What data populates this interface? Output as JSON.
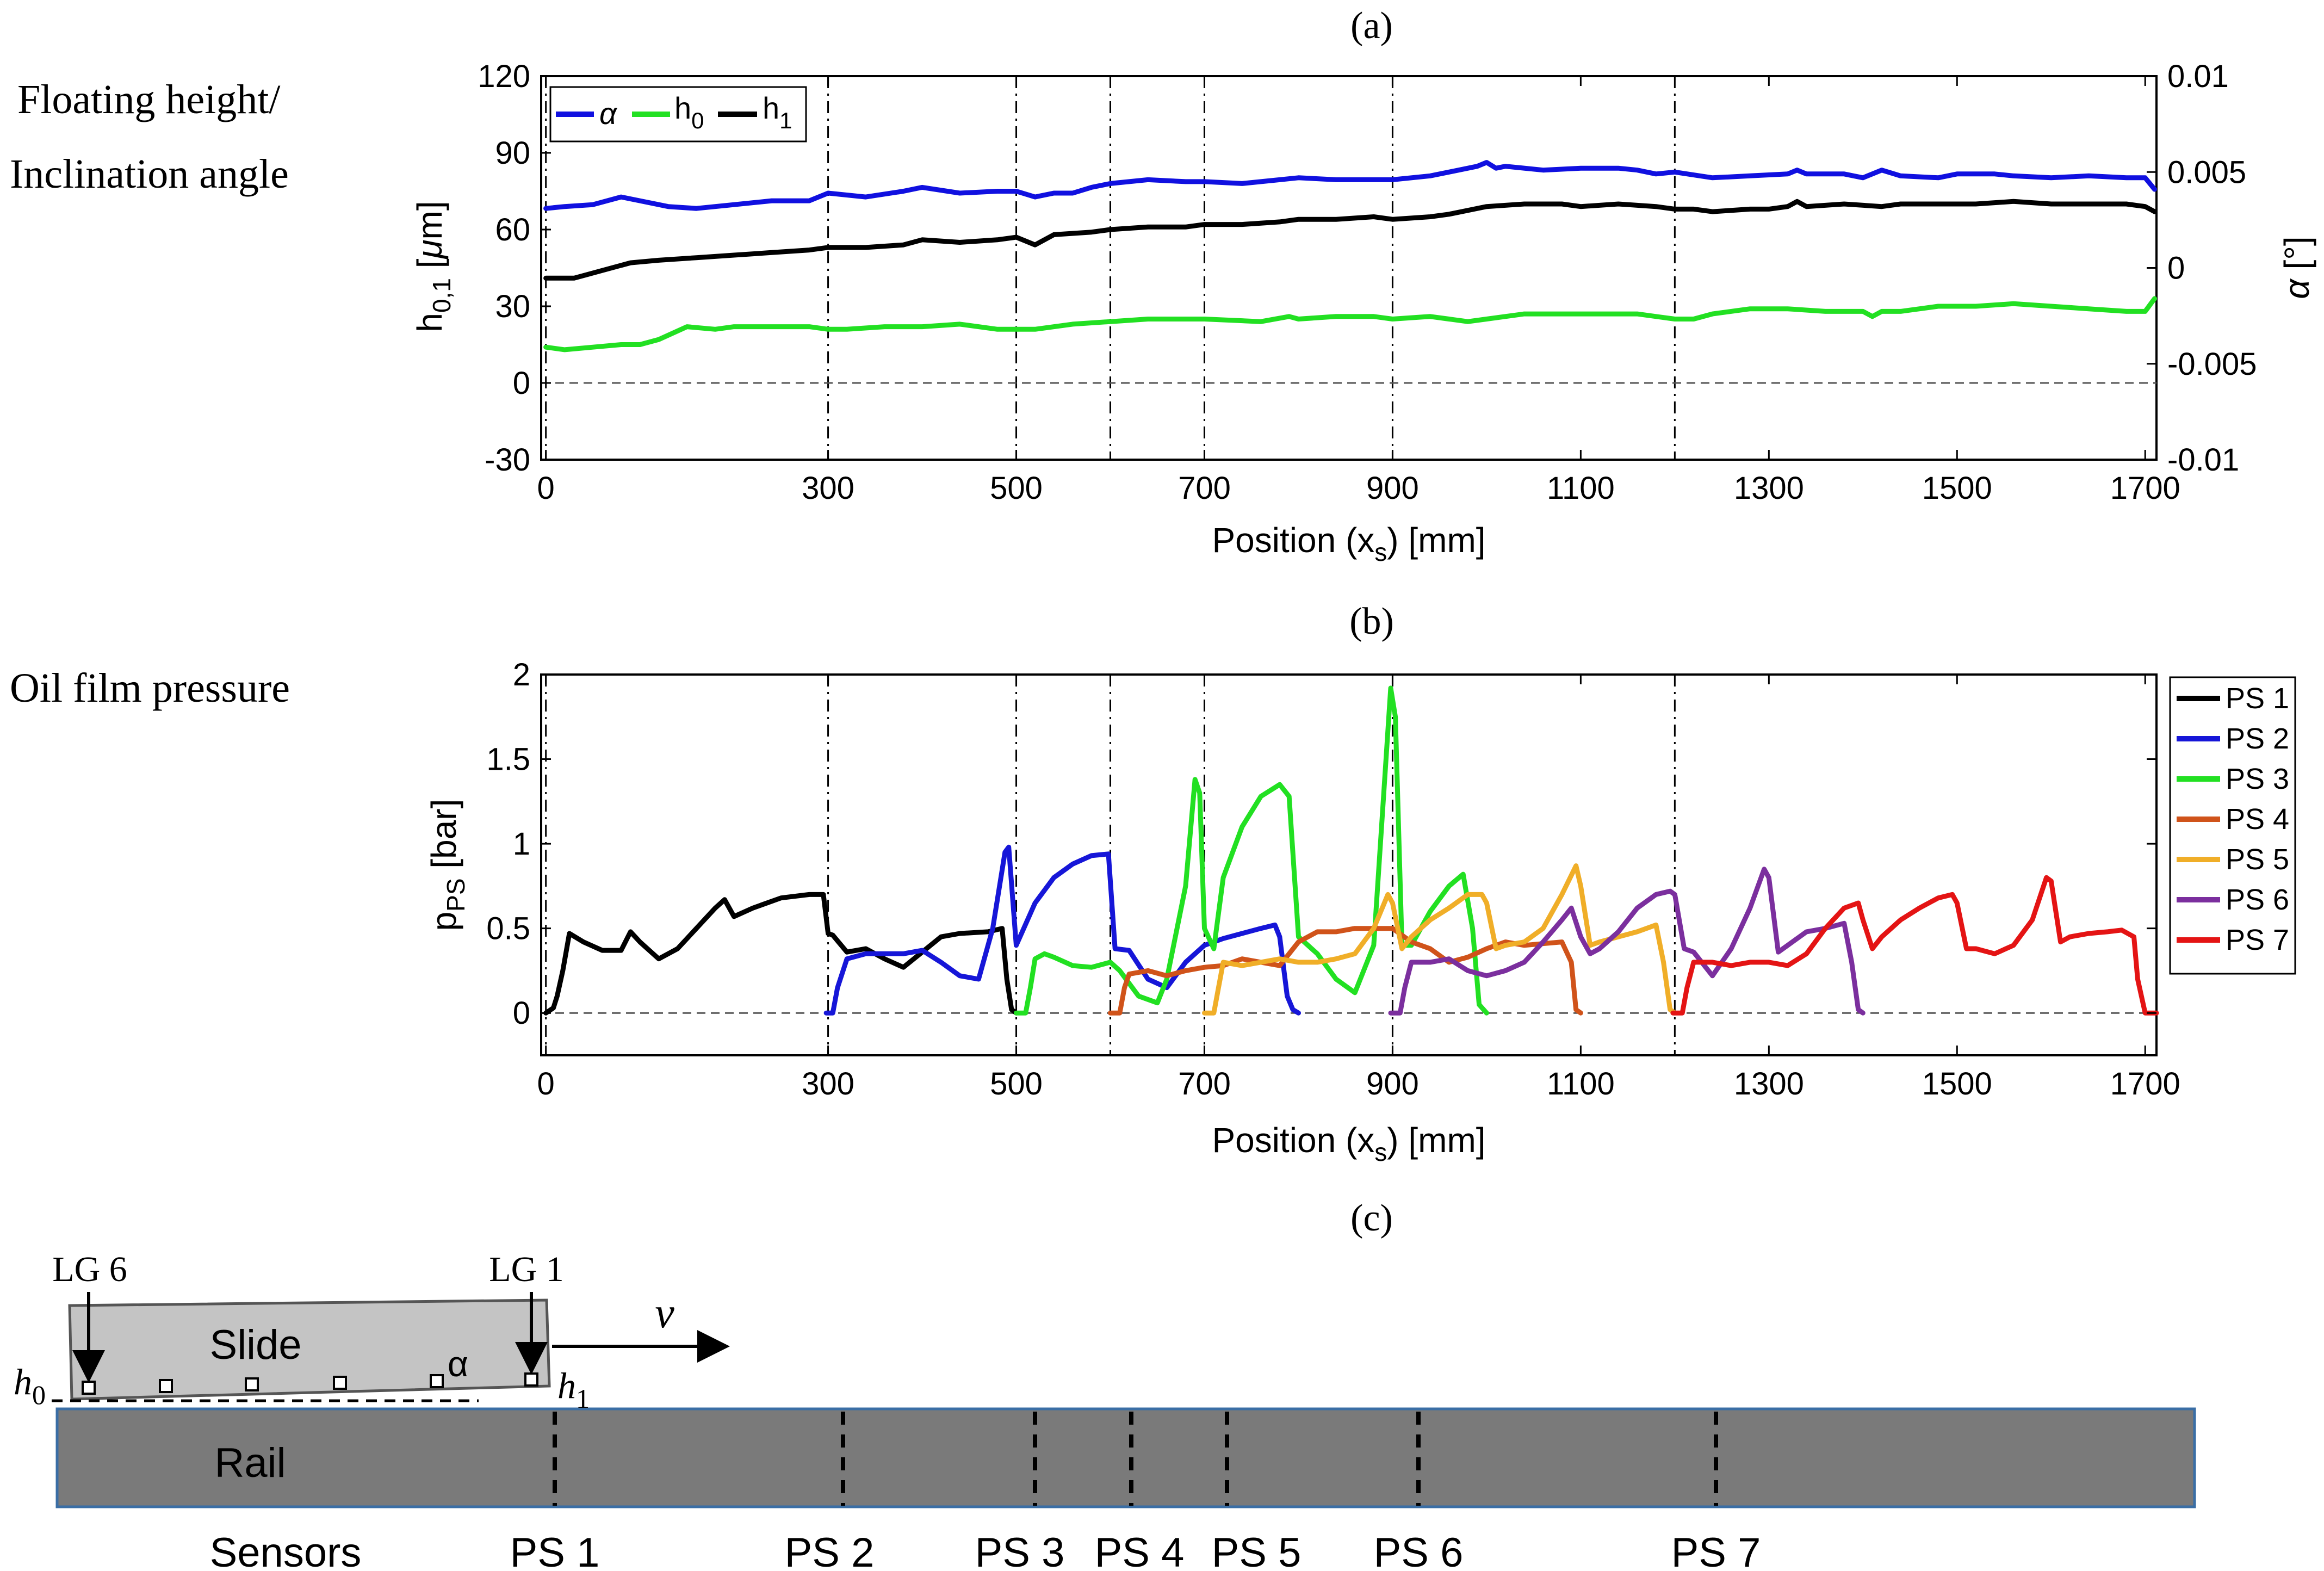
{
  "side_labels": {
    "a_line1": "Floating height/",
    "a_line2": "Inclination angle",
    "b_line1": "Oil film pressure"
  },
  "panel_labels": {
    "a": "(a)",
    "b": "(b)",
    "c": "(c)"
  },
  "chart_data": [
    {
      "type": "line",
      "panel": "a",
      "xlabel": "Position (x_s) [mm]",
      "ylabel": "h_0,1 [µm]",
      "ylabel_right": "α [°]",
      "xlim": [
        -5,
        1712
      ],
      "ylim": [
        -30,
        120
      ],
      "ylim_right": [
        -0.01,
        0.01
      ],
      "x_ticks": [
        0,
        300,
        500,
        700,
        900,
        1100,
        1300,
        1500,
        1700
      ],
      "y_ticks": [
        -30,
        0,
        30,
        60,
        90,
        120
      ],
      "y_ticks_right": [
        -0.01,
        -0.005,
        0,
        0.005,
        0.01
      ],
      "vlines": [
        0,
        300,
        500,
        600,
        700,
        900,
        1200
      ],
      "hline": 0,
      "legend": {
        "placement": "top-left",
        "entries": [
          "α",
          "h_0",
          "h_1"
        ]
      },
      "series": [
        {
          "name": "α",
          "axis": "right",
          "color": "#1010e0",
          "x": [
            0,
            20,
            50,
            80,
            100,
            130,
            160,
            200,
            240,
            280,
            300,
            340,
            380,
            400,
            440,
            480,
            500,
            520,
            540,
            560,
            580,
            600,
            640,
            680,
            700,
            740,
            780,
            800,
            840,
            880,
            900,
            940,
            960,
            990,
            1000,
            1010,
            1020,
            1060,
            1100,
            1140,
            1160,
            1180,
            1200,
            1240,
            1280,
            1320,
            1330,
            1340,
            1380,
            1400,
            1420,
            1440,
            1480,
            1500,
            1540,
            1560,
            1600,
            1640,
            1680,
            1700,
            1710
          ],
          "y": [
            0.0031,
            0.0032,
            0.0033,
            0.0037,
            0.0035,
            0.0032,
            0.0031,
            0.0033,
            0.0035,
            0.0035,
            0.0039,
            0.0037,
            0.004,
            0.0042,
            0.0039,
            0.004,
            0.004,
            0.0037,
            0.0039,
            0.0039,
            0.0042,
            0.0044,
            0.0046,
            0.0045,
            0.0045,
            0.0044,
            0.0046,
            0.0047,
            0.0046,
            0.0046,
            0.0046,
            0.0048,
            0.005,
            0.0053,
            0.0055,
            0.0052,
            0.0053,
            0.0051,
            0.0052,
            0.0052,
            0.0051,
            0.0049,
            0.005,
            0.0047,
            0.0048,
            0.0049,
            0.0051,
            0.0049,
            0.0049,
            0.0047,
            0.0051,
            0.0048,
            0.0047,
            0.0049,
            0.0049,
            0.0048,
            0.0047,
            0.0048,
            0.0047,
            0.0047,
            0.0041
          ]
        },
        {
          "name": "h_0",
          "axis": "left",
          "color": "#22e022",
          "x": [
            0,
            20,
            50,
            80,
            100,
            120,
            150,
            180,
            200,
            240,
            280,
            300,
            320,
            360,
            400,
            440,
            480,
            500,
            520,
            560,
            600,
            640,
            700,
            760,
            790,
            800,
            840,
            880,
            900,
            940,
            960,
            980,
            1000,
            1040,
            1100,
            1160,
            1200,
            1220,
            1240,
            1280,
            1320,
            1360,
            1400,
            1410,
            1420,
            1440,
            1480,
            1520,
            1560,
            1600,
            1640,
            1680,
            1700,
            1710
          ],
          "y": [
            14,
            13,
            14,
            15,
            15,
            17,
            22,
            21,
            22,
            22,
            22,
            21,
            21,
            22,
            22,
            23,
            21,
            21,
            21,
            23,
            24,
            25,
            25,
            24,
            26,
            25,
            26,
            26,
            25,
            26,
            25,
            24,
            25,
            27,
            27,
            27,
            25,
            25,
            27,
            29,
            29,
            28,
            28,
            26,
            28,
            28,
            30,
            30,
            31,
            30,
            29,
            28,
            28,
            33
          ]
        },
        {
          "name": "h_1",
          "axis": "left",
          "color": "#000000",
          "x": [
            0,
            30,
            60,
            90,
            120,
            160,
            200,
            240,
            280,
            300,
            340,
            380,
            400,
            440,
            480,
            500,
            520,
            540,
            580,
            600,
            640,
            680,
            700,
            740,
            780,
            800,
            840,
            880,
            900,
            940,
            960,
            1000,
            1040,
            1080,
            1100,
            1140,
            1180,
            1200,
            1220,
            1240,
            1280,
            1300,
            1320,
            1330,
            1340,
            1380,
            1420,
            1440,
            1480,
            1520,
            1560,
            1600,
            1640,
            1680,
            1700,
            1710
          ],
          "y": [
            41,
            41,
            44,
            47,
            48,
            49,
            50,
            51,
            52,
            53,
            53,
            54,
            56,
            55,
            56,
            57,
            54,
            58,
            59,
            60,
            61,
            61,
            62,
            62,
            63,
            64,
            64,
            65,
            64,
            65,
            66,
            69,
            70,
            70,
            69,
            70,
            69,
            68,
            68,
            67,
            68,
            68,
            69,
            71,
            69,
            70,
            69,
            70,
            70,
            70,
            71,
            70,
            70,
            70,
            69,
            67
          ]
        }
      ]
    },
    {
      "type": "line",
      "panel": "b",
      "xlabel": "Position (x_s) [mm]",
      "ylabel": "p_PS [bar]",
      "xlim": [
        -5,
        1712
      ],
      "ylim": [
        -0.25,
        2.0
      ],
      "x_ticks": [
        0,
        300,
        500,
        700,
        900,
        1100,
        1300,
        1500,
        1700
      ],
      "y_ticks": [
        0,
        0.5,
        1,
        1.5,
        2
      ],
      "vlines": [
        0,
        300,
        500,
        600,
        700,
        900,
        1200
      ],
      "hline": 0,
      "legend": {
        "placement": "right"
      },
      "series": [
        {
          "name": "PS 1",
          "color": "#000000",
          "x": [
            0,
            8,
            12,
            18,
            25,
            40,
            60,
            80,
            90,
            100,
            120,
            140,
            160,
            180,
            190,
            200,
            220,
            250,
            280,
            295,
            300,
            305,
            320,
            340,
            360,
            380,
            400,
            420,
            440,
            470,
            485,
            490,
            495,
            500
          ],
          "y": [
            0,
            0.03,
            0.1,
            0.25,
            0.47,
            0.42,
            0.37,
            0.37,
            0.48,
            0.42,
            0.32,
            0.38,
            0.5,
            0.62,
            0.67,
            0.57,
            0.62,
            0.68,
            0.7,
            0.7,
            0.47,
            0.46,
            0.36,
            0.38,
            0.32,
            0.27,
            0.36,
            0.45,
            0.47,
            0.48,
            0.5,
            0.2,
            0.02,
            0
          ]
        },
        {
          "name": "PS 2",
          "color": "#1616d8",
          "x": [
            298,
            305,
            310,
            320,
            340,
            360,
            380,
            400,
            420,
            440,
            460,
            475,
            488,
            492,
            500,
            520,
            540,
            560,
            580,
            598,
            605,
            620,
            640,
            660,
            680,
            700,
            720,
            740,
            760,
            775,
            780,
            788,
            794,
            800
          ],
          "y": [
            0,
            0,
            0.15,
            0.32,
            0.35,
            0.35,
            0.35,
            0.37,
            0.3,
            0.22,
            0.2,
            0.5,
            0.95,
            0.98,
            0.4,
            0.65,
            0.8,
            0.88,
            0.93,
            0.94,
            0.38,
            0.37,
            0.2,
            0.15,
            0.3,
            0.4,
            0.44,
            0.47,
            0.5,
            0.52,
            0.45,
            0.1,
            0.02,
            0
          ]
        },
        {
          "name": "PS 3",
          "color": "#22e022",
          "x": [
            500,
            510,
            515,
            520,
            530,
            540,
            560,
            580,
            600,
            610,
            630,
            650,
            660,
            680,
            690,
            695,
            700,
            710,
            720,
            740,
            760,
            780,
            790,
            800,
            820,
            840,
            860,
            880,
            898,
            903,
            910,
            920,
            940,
            960,
            975,
            985,
            992,
            1000
          ],
          "y": [
            0,
            0,
            0.15,
            0.32,
            0.35,
            0.33,
            0.28,
            0.27,
            0.3,
            0.25,
            0.1,
            0.06,
            0.2,
            0.75,
            1.38,
            1.3,
            0.5,
            0.38,
            0.8,
            1.1,
            1.28,
            1.35,
            1.28,
            0.45,
            0.35,
            0.2,
            0.12,
            0.4,
            1.92,
            1.75,
            0.4,
            0.4,
            0.6,
            0.75,
            0.82,
            0.5,
            0.05,
            0
          ]
        },
        {
          "name": "PS 4",
          "color": "#d0531a",
          "x": [
            600,
            610,
            615,
            620,
            640,
            660,
            680,
            700,
            720,
            740,
            760,
            780,
            800,
            820,
            840,
            860,
            880,
            900,
            920,
            940,
            960,
            980,
            1000,
            1020,
            1040,
            1060,
            1080,
            1090,
            1095,
            1100
          ],
          "y": [
            0,
            0,
            0.15,
            0.23,
            0.25,
            0.22,
            0.25,
            0.27,
            0.28,
            0.32,
            0.3,
            0.28,
            0.42,
            0.48,
            0.48,
            0.5,
            0.5,
            0.5,
            0.42,
            0.38,
            0.3,
            0.33,
            0.38,
            0.42,
            0.4,
            0.41,
            0.42,
            0.3,
            0.02,
            0
          ]
        },
        {
          "name": "PS 5",
          "color": "#f0ae28",
          "x": [
            700,
            710,
            715,
            720,
            740,
            760,
            780,
            800,
            820,
            840,
            860,
            880,
            895,
            900,
            910,
            920,
            940,
            960,
            980,
            995,
            1000,
            1010,
            1020,
            1040,
            1060,
            1080,
            1095,
            1100,
            1110,
            1120,
            1140,
            1160,
            1180,
            1188,
            1195,
            1200
          ],
          "y": [
            0,
            0,
            0.15,
            0.3,
            0.28,
            0.3,
            0.32,
            0.3,
            0.3,
            0.32,
            0.35,
            0.5,
            0.7,
            0.65,
            0.38,
            0.45,
            0.55,
            0.62,
            0.7,
            0.7,
            0.65,
            0.38,
            0.4,
            0.42,
            0.5,
            0.7,
            0.87,
            0.75,
            0.4,
            0.42,
            0.45,
            0.48,
            0.52,
            0.3,
            0.02,
            0
          ]
        },
        {
          "name": "PS 6",
          "color": "#7b2f9e",
          "x": [
            898,
            908,
            913,
            920,
            940,
            960,
            980,
            1000,
            1020,
            1040,
            1060,
            1080,
            1090,
            1100,
            1110,
            1120,
            1140,
            1160,
            1180,
            1195,
            1200,
            1210,
            1220,
            1240,
            1260,
            1280,
            1295,
            1300,
            1310,
            1320,
            1340,
            1360,
            1380,
            1388,
            1395,
            1400
          ],
          "y": [
            0,
            0,
            0.15,
            0.3,
            0.3,
            0.32,
            0.25,
            0.22,
            0.25,
            0.3,
            0.42,
            0.55,
            0.62,
            0.45,
            0.35,
            0.38,
            0.48,
            0.62,
            0.7,
            0.72,
            0.7,
            0.38,
            0.36,
            0.22,
            0.38,
            0.62,
            0.85,
            0.8,
            0.36,
            0.4,
            0.48,
            0.5,
            0.53,
            0.3,
            0.02,
            0
          ]
        },
        {
          "name": "PS 7",
          "color": "#e41414",
          "x": [
            1198,
            1208,
            1213,
            1220,
            1240,
            1260,
            1280,
            1300,
            1320,
            1340,
            1360,
            1380,
            1395,
            1400,
            1410,
            1420,
            1440,
            1460,
            1480,
            1495,
            1500,
            1510,
            1520,
            1540,
            1560,
            1580,
            1595,
            1600,
            1610,
            1620,
            1640,
            1660,
            1675,
            1688,
            1692,
            1700,
            1712
          ],
          "y": [
            0,
            0,
            0.15,
            0.3,
            0.3,
            0.28,
            0.3,
            0.3,
            0.28,
            0.35,
            0.5,
            0.62,
            0.65,
            0.55,
            0.38,
            0.45,
            0.55,
            0.62,
            0.68,
            0.7,
            0.65,
            0.38,
            0.38,
            0.35,
            0.4,
            0.55,
            0.8,
            0.78,
            0.42,
            0.45,
            0.47,
            0.48,
            0.49,
            0.45,
            0.2,
            0,
            0
          ]
        }
      ]
    }
  ],
  "diagram": {
    "lg6": "LG 6",
    "lg1": "LG 1",
    "slide": "Slide",
    "alpha": "α",
    "velocity": "v",
    "h0": "h0",
    "h1": "h1",
    "rail": "Rail",
    "sensors_label": "Sensors",
    "ps_labels": [
      "PS 1",
      "PS 2",
      "PS 3",
      "PS 4",
      "PS 5",
      "PS 6",
      "PS 7"
    ]
  }
}
